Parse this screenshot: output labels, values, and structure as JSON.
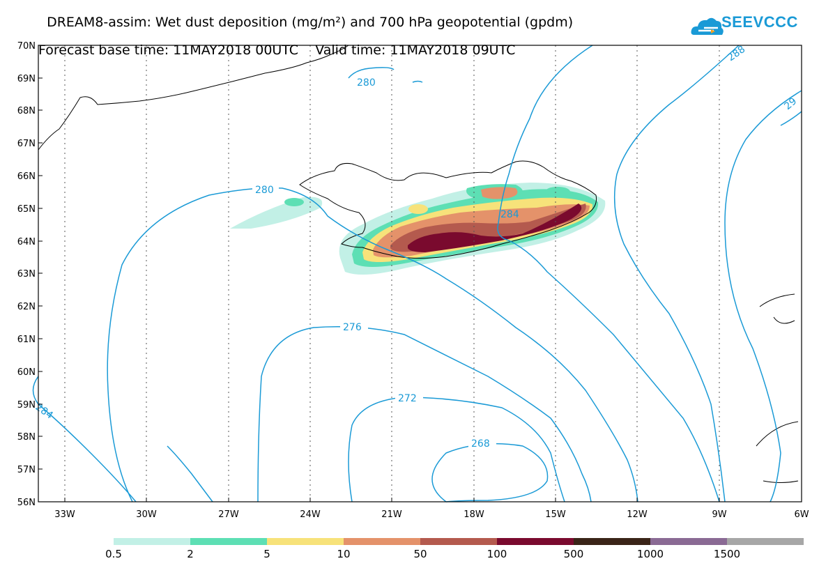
{
  "title": {
    "line1": "DREAM8-assim: Wet dust deposition (mg/m²) and 700 hPa geopotential (gpdm)",
    "line2": "Forecast base time: 11MAY2018 00UTC    Valid time: 11MAY2018 09UTC"
  },
  "logo": {
    "text": "SEEVCCC",
    "icon": "cloud-icon",
    "color": "#1a9ad6"
  },
  "axes": {
    "lat_labels": [
      "70N",
      "69N",
      "68N",
      "67N",
      "66N",
      "65N",
      "64N",
      "63N",
      "62N",
      "61N",
      "60N",
      "59N",
      "58N",
      "57N",
      "56N"
    ],
    "lon_labels": [
      "33W",
      "30W",
      "27W",
      "24W",
      "21W",
      "18W",
      "15W",
      "12W",
      "9W",
      "6W"
    ]
  },
  "contours": {
    "color": "#1a9ad6",
    "labels": [
      "280",
      "280",
      "284",
      "276",
      "272",
      "268",
      "284",
      "288",
      "29"
    ]
  },
  "legend": {
    "colors": [
      "#c2f0e6",
      "#5ddfb4",
      "#f7e27a",
      "#e4926a",
      "#b45a4e",
      "#7a0a2e",
      "#3a2418",
      "#8a6a94",
      "#a7a7a7"
    ],
    "labels": [
      "0.5",
      "2",
      "5",
      "10",
      "50",
      "100",
      "500",
      "1000",
      "1500"
    ]
  }
}
